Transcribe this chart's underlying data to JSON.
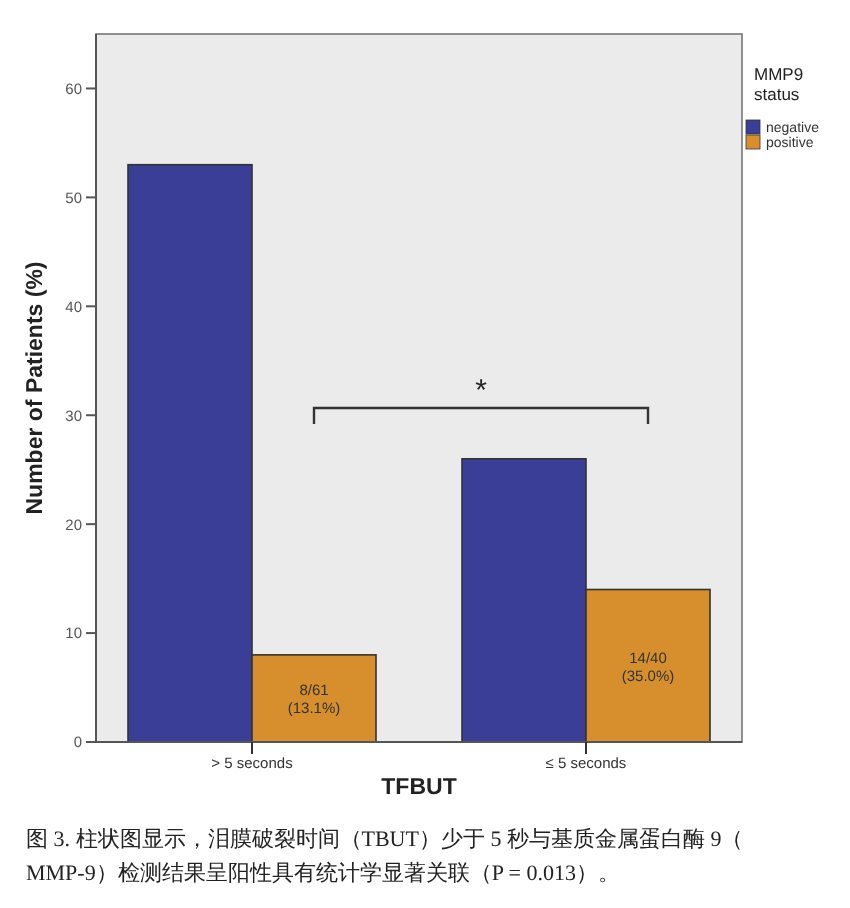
{
  "chart_data": {
    "type": "bar",
    "xlabel": "TFBUT",
    "ylabel": "Number of Patients (%)",
    "legend_title": "MMP9 status",
    "categories": [
      "> 5 seconds",
      "≤ 5 seconds"
    ],
    "series": [
      {
        "name": "negative",
        "color": "#3a3e97",
        "values": [
          53,
          26
        ]
      },
      {
        "name": "positive",
        "color": "#d68f2c",
        "values": [
          8,
          14
        ],
        "value_labels": [
          "8/61 (13.1%)",
          "14/40 (35.0%)"
        ]
      }
    ],
    "ylim": [
      0,
      65
    ],
    "yticks": [
      0,
      10,
      20,
      30,
      40,
      50,
      60
    ],
    "legend": "right",
    "grid": false,
    "annotations": [
      "*",
      "图 3. 柱状图显示，泪膜破裂时间（TBUT）少于 5 秒与基质金属蛋白酶 9（MMP-9）检测结果呈阳性具有统计学显著关联（P = 0.013）。"
    ]
  }
}
